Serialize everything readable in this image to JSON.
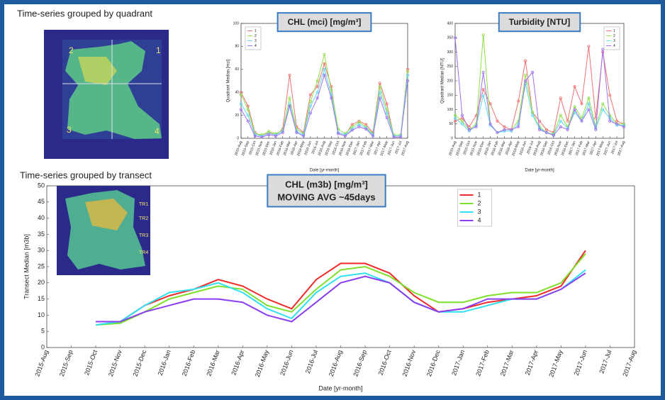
{
  "sections": [
    "Time-series grouped by quadrant",
    "Time-series grouped by transect"
  ],
  "maps": {
    "quadrant_labels": [
      "2",
      "1",
      "3",
      "4"
    ],
    "transect_labels": [
      "TR1",
      "TR2",
      "TR3",
      "TR4"
    ]
  },
  "chart_data": [
    {
      "type": "line",
      "title": "CHL (mci) [mg/m³]",
      "x_label": "Date [yr-month]",
      "y_label": "Quadrant Median [mci]",
      "categories": [
        "2015-Aug",
        "2015-Sep",
        "2015-Oct",
        "2015-Nov",
        "2015-Dec",
        "2016-Jan",
        "2016-Feb",
        "2016-Mar",
        "2016-Apr",
        "2016-May",
        "2016-Jun",
        "2016-Jul",
        "2016-Aug",
        "2016-Sep",
        "2016-Oct",
        "2016-Nov",
        "2016-Dec",
        "2017-Jan",
        "2017-Feb",
        "2017-Mar",
        "2017-Apr",
        "2017-May",
        "2017-Jun",
        "2017-Jul",
        "2017-Aug"
      ],
      "series": [
        {
          "name": "1",
          "color": "#f07070",
          "values": [
            40,
            28,
            5,
            2,
            5,
            3,
            8,
            55,
            10,
            5,
            38,
            45,
            65,
            45,
            5,
            3,
            12,
            15,
            12,
            5,
            48,
            30,
            2,
            2,
            60
          ]
        },
        {
          "name": "2",
          "color": "#8fe04a",
          "values": [
            38,
            25,
            4,
            3,
            6,
            4,
            7,
            35,
            8,
            4,
            32,
            50,
            73,
            42,
            8,
            4,
            10,
            14,
            10,
            4,
            45,
            25,
            3,
            3,
            58
          ]
        },
        {
          "name": "3",
          "color": "#5fd8f0",
          "values": [
            30,
            20,
            3,
            2,
            4,
            3,
            6,
            30,
            6,
            3,
            28,
            40,
            60,
            38,
            5,
            3,
            8,
            12,
            9,
            3,
            40,
            22,
            2,
            2,
            55
          ]
        },
        {
          "name": "4",
          "color": "#a070f0",
          "values": [
            25,
            15,
            2,
            1,
            3,
            2,
            5,
            28,
            5,
            2,
            22,
            35,
            55,
            35,
            4,
            2,
            7,
            10,
            8,
            2,
            35,
            18,
            1,
            1,
            50
          ]
        }
      ],
      "ylim": [
        0,
        100
      ],
      "yticks": [
        0,
        20,
        40,
        60,
        80,
        100
      ],
      "markers": true,
      "legend": "upper left"
    },
    {
      "type": "line",
      "title": "Turbidity [NTU]",
      "x_label": "Date [yr-month]",
      "y_label": "Quadrant Median [NTU]",
      "categories": [
        "2015-Aug",
        "2015-Sep",
        "2015-Oct",
        "2015-Nov",
        "2015-Dec",
        "2016-Jan",
        "2016-Feb",
        "2016-Mar",
        "2016-Apr",
        "2016-May",
        "2016-Jun",
        "2016-Jul",
        "2016-Aug",
        "2016-Sep",
        "2016-Oct",
        "2016-Nov",
        "2016-Dec",
        "2017-Jan",
        "2017-Feb",
        "2017-Mar",
        "2017-Apr",
        "2017-May",
        "2017-Jun",
        "2017-Jul",
        "2017-Aug"
      ],
      "series": [
        {
          "name": "1",
          "color": "#f07070",
          "values": [
            60,
            70,
            40,
            80,
            170,
            120,
            60,
            40,
            30,
            130,
            270,
            90,
            60,
            30,
            20,
            140,
            60,
            180,
            120,
            320,
            70,
            300,
            150,
            60,
            50
          ]
        },
        {
          "name": "2",
          "color": "#8fe04a",
          "values": [
            80,
            60,
            30,
            50,
            360,
            50,
            20,
            30,
            30,
            60,
            220,
            90,
            40,
            20,
            15,
            80,
            40,
            110,
            70,
            140,
            40,
            120,
            80,
            50,
            50
          ]
        },
        {
          "name": "3",
          "color": "#5fd8f0",
          "values": [
            70,
            50,
            25,
            45,
            150,
            45,
            20,
            25,
            25,
            50,
            190,
            80,
            35,
            20,
            12,
            60,
            35,
            90,
            60,
            120,
            35,
            100,
            70,
            45,
            45
          ]
        },
        {
          "name": "4",
          "color": "#a070f0",
          "values": [
            350,
            80,
            30,
            40,
            230,
            50,
            20,
            30,
            30,
            40,
            200,
            230,
            30,
            20,
            10,
            40,
            30,
            100,
            60,
            100,
            30,
            310,
            60,
            50,
            40
          ]
        }
      ],
      "ylim": [
        0,
        400
      ],
      "yticks": [
        0,
        50,
        100,
        150,
        200,
        250,
        300,
        350,
        400
      ],
      "markers": true,
      "legend": "upper right"
    },
    {
      "type": "line",
      "title": "CHL (m3b) [mg/m³]",
      "subtitle": "MOVING AVG ~45days",
      "x_label": "Date [yr-month]",
      "y_label": "Transect Median [m3b]",
      "categories": [
        "2015-Aug",
        "2015-Sep",
        "2015-Oct",
        "2015-Nov",
        "2015-Dec",
        "2016-Jan",
        "2016-Feb",
        "2016-Mar",
        "2016-Apr",
        "2016-May",
        "2016-Jun",
        "2016-Jul",
        "2016-Aug",
        "2016-Sep",
        "2016-Oct",
        "2016-Nov",
        "2016-Dec",
        "2017-Jan",
        "2017-Feb",
        "2017-Mar",
        "2017-Apr",
        "2017-May",
        "2017-Jun",
        "2017-Jul",
        "2017-Aug"
      ],
      "series": [
        {
          "name": "1",
          "color": "#ee2a2a",
          "values": [
            null,
            null,
            8,
            8,
            13,
            16,
            18,
            21,
            19,
            15,
            12,
            21,
            26,
            26,
            23,
            16,
            11,
            12,
            14,
            15,
            16,
            19,
            30,
            null,
            null
          ]
        },
        {
          "name": "2",
          "color": "#7ee02a",
          "values": [
            null,
            null,
            7,
            7.5,
            11,
            15,
            17,
            19,
            18,
            13,
            11,
            18,
            24,
            25,
            22,
            17,
            14,
            14,
            16,
            17,
            17,
            20,
            29,
            null,
            null
          ]
        },
        {
          "name": "3",
          "color": "#2ee0f0",
          "values": [
            null,
            null,
            7,
            8,
            13,
            17,
            18,
            20,
            17,
            12,
            9,
            17,
            22,
            23,
            20,
            14,
            11,
            11,
            13,
            15,
            15,
            18,
            24,
            null,
            null
          ]
        },
        {
          "name": "4",
          "color": "#8a3ef0",
          "values": [
            null,
            null,
            8,
            8,
            11,
            13,
            15,
            15,
            14,
            10,
            8,
            14,
            20,
            22,
            20,
            14,
            11,
            12,
            15,
            15,
            15,
            18,
            23,
            null,
            null
          ]
        }
      ],
      "ylim": [
        0,
        50
      ],
      "yticks": [
        0,
        5,
        10,
        15,
        20,
        25,
        30,
        35,
        40,
        45,
        50
      ],
      "markers": false,
      "legend": "upper center"
    }
  ]
}
